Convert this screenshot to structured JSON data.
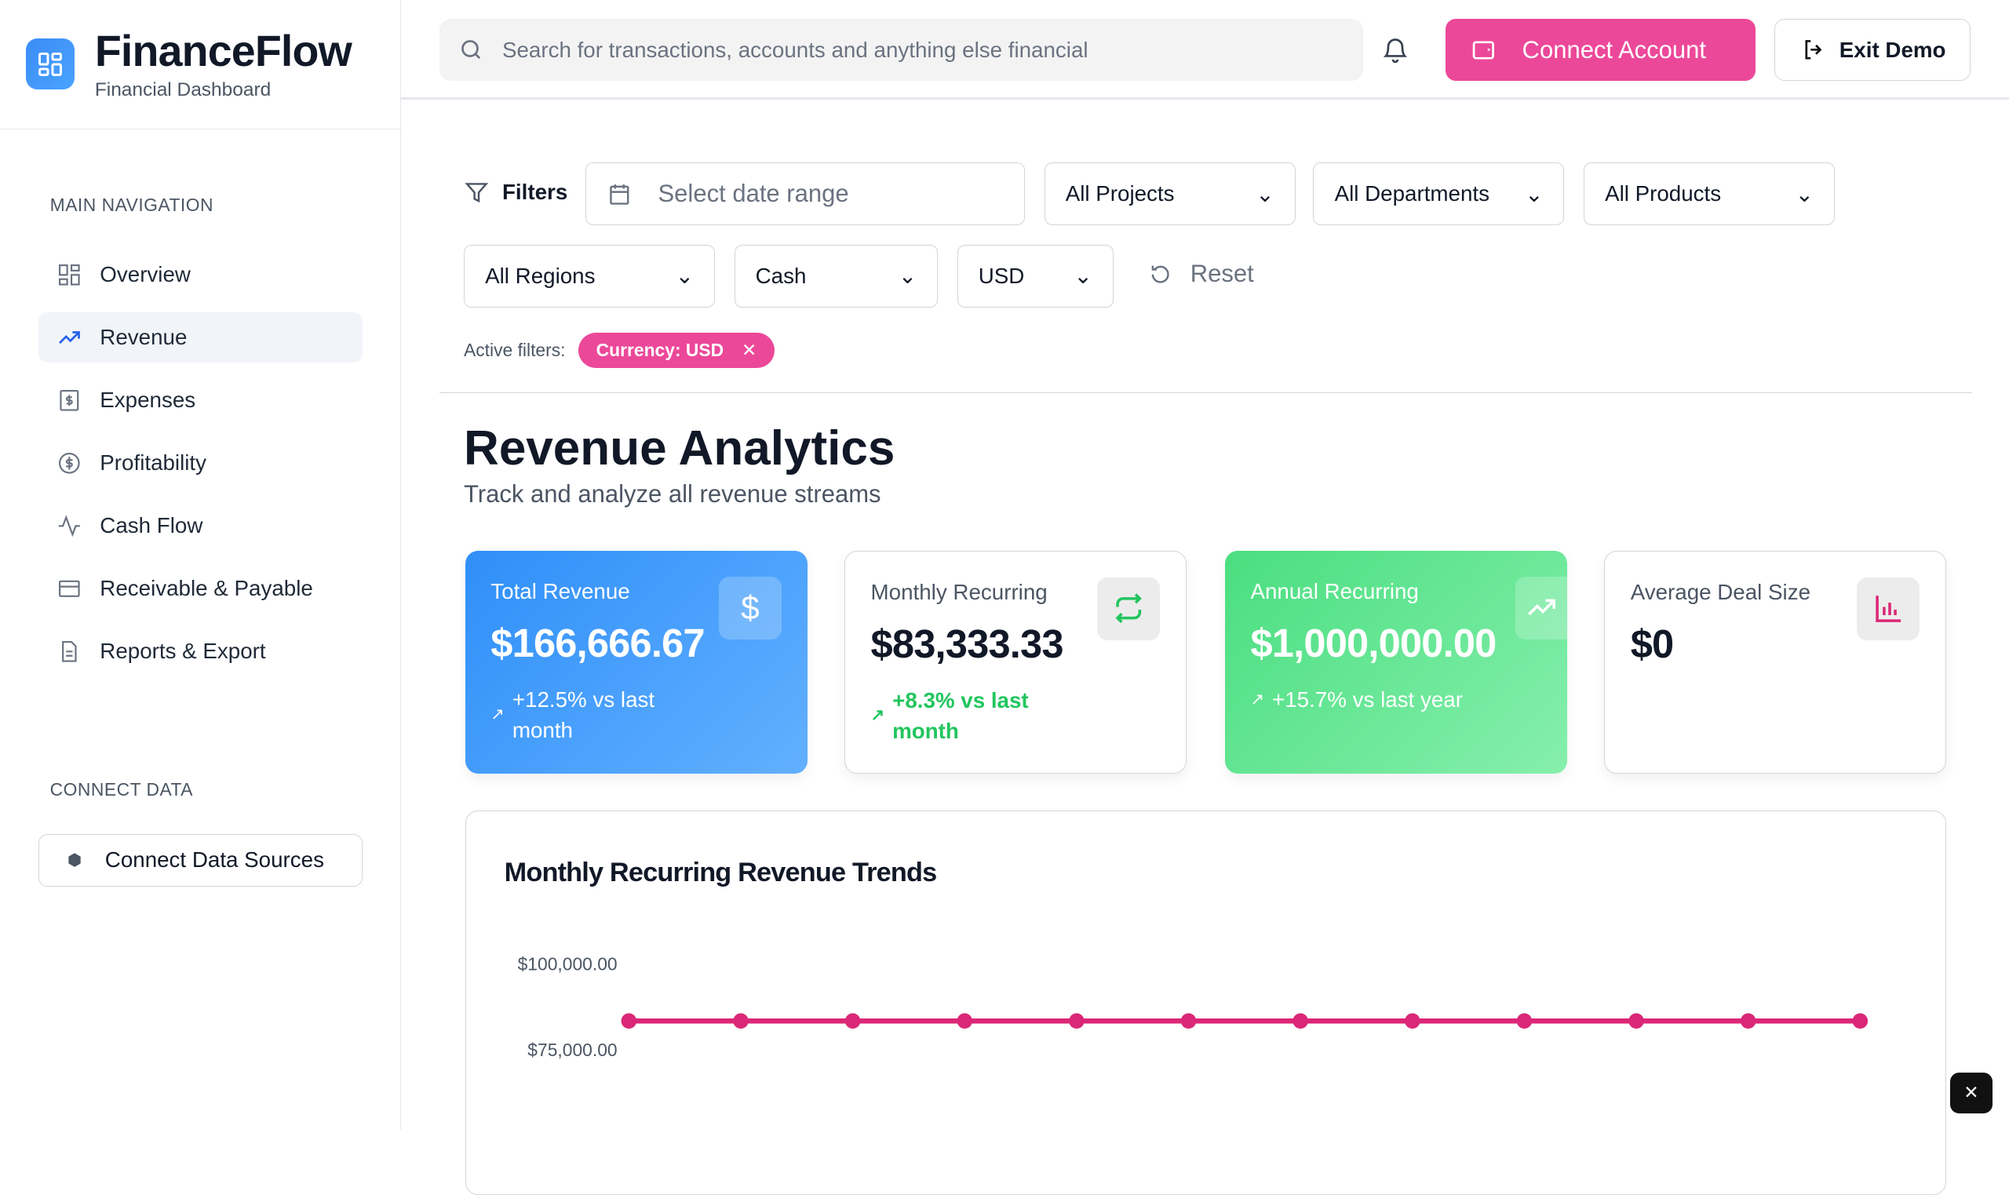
{
  "brand": {
    "title": "FinanceFlow",
    "subtitle": "Financial Dashboard"
  },
  "sidebar": {
    "main_label": "MAIN NAVIGATION",
    "items": [
      {
        "label": "Overview",
        "icon": "grid-icon"
      },
      {
        "label": "Revenue",
        "icon": "trending-up-icon",
        "active": true
      },
      {
        "label": "Expenses",
        "icon": "receipt-icon"
      },
      {
        "label": "Profitability",
        "icon": "dollar-circle-icon"
      },
      {
        "label": "Cash Flow",
        "icon": "activity-icon"
      },
      {
        "label": "Receivable & Payable",
        "icon": "credit-card-icon"
      },
      {
        "label": "Reports & Export",
        "icon": "file-icon"
      }
    ],
    "connect_label": "CONNECT DATA",
    "connect_button": "Connect Data Sources"
  },
  "header": {
    "search_placeholder": "Search for transactions, accounts and anything else financial",
    "connect_account": "Connect Account",
    "exit_demo": "Exit Demo"
  },
  "filters": {
    "label": "Filters",
    "date_placeholder": "Select date range",
    "projects": "All Projects",
    "departments": "All Departments",
    "products": "All Products",
    "regions": "All Regions",
    "basis": "Cash",
    "currency": "USD",
    "reset": "Reset",
    "active_label": "Active filters:",
    "active_chip": "Currency: USD"
  },
  "page": {
    "title": "Revenue Analytics",
    "subtitle": "Track and analyze all revenue streams"
  },
  "cards": [
    {
      "label": "Total Revenue",
      "value": "$166,666.67",
      "change": "+12.5% vs last month",
      "icon": "dollar-icon"
    },
    {
      "label": "Monthly Recurring",
      "value": "$83,333.33",
      "change": "+8.3% vs last month",
      "icon": "repeat-icon"
    },
    {
      "label": "Annual Recurring",
      "value": "$1,000,000.00",
      "change": "+15.7% vs last year",
      "icon": "trending-up-icon"
    },
    {
      "label": "Average Deal Size",
      "value": "$0",
      "icon": "bar-chart-icon"
    }
  ],
  "colors": {
    "accent": "#ec4899",
    "blue": "#3b8df6",
    "green": "#22c55e"
  },
  "chart_data": {
    "type": "line",
    "title": "Monthly Recurring Revenue Trends",
    "yticks": [
      "$100,000.00",
      "$75,000.00"
    ],
    "ytick_values": [
      100000,
      75000
    ],
    "series": [
      {
        "values": [
          83333.33,
          83333.33,
          83333.33,
          83333.33,
          83333.33,
          83333.33,
          83333.33,
          83333.33,
          83333.33,
          83333.33,
          83333.33,
          83333.33
        ],
        "color": "#db2777"
      }
    ]
  }
}
